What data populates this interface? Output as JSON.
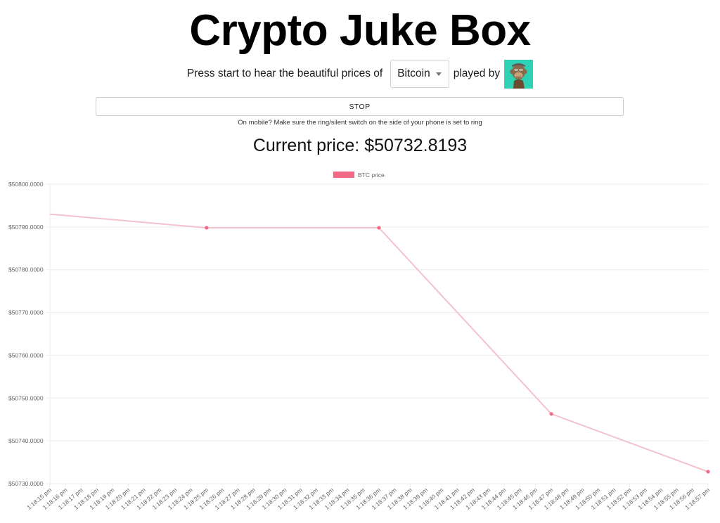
{
  "header": {
    "title": "Crypto Juke Box"
  },
  "controls": {
    "prompt_text": "Press start to hear the beautiful prices of",
    "coin_select": {
      "selected": "Bitcoin"
    },
    "played_by_text": "played by",
    "avatar_icon": "bored-ape-avatar",
    "stop_label": "STOP",
    "mobile_hint": "On mobile? Make sure the ring/silent switch on the side of your phone is set to ring"
  },
  "current_price": "Current price: $50732.8193",
  "colors": {
    "series": "#f06a85",
    "series_line": "#f4c2cc",
    "grid": "#ececec",
    "avatar_bg": "#2fd1b4"
  },
  "chart_data": {
    "type": "line",
    "legend": {
      "label": "BTC price",
      "placement": "top-center"
    },
    "ylim": [
      50730,
      50800
    ],
    "y_ticks": [
      "$50800.0000",
      "$50790.0000",
      "$50780.0000",
      "$50770.0000",
      "$50760.0000",
      "$50750.0000",
      "$50740.0000",
      "$50730.0000"
    ],
    "x": [
      "1:18:15 pm",
      "1:18:16 pm",
      "1:18:17 pm",
      "1:18:18 pm",
      "1:18:19 pm",
      "1:18:20 pm",
      "1:18:21 pm",
      "1:18:22 pm",
      "1:18:23 pm",
      "1:18:24 pm",
      "1:18:25 pm",
      "1:18:26 pm",
      "1:18:27 pm",
      "1:18:28 pm",
      "1:18:29 pm",
      "1:18:30 pm",
      "1:18:31 pm",
      "1:18:32 pm",
      "1:18:33 pm",
      "1:18:34 pm",
      "1:18:35 pm",
      "1:18:36 pm",
      "1:18:37 pm",
      "1:18:38 pm",
      "1:18:39 pm",
      "1:18:40 pm",
      "1:18:41 pm",
      "1:18:42 pm",
      "1:18:43 pm",
      "1:18:44 pm",
      "1:18:45 pm",
      "1:18:46 pm",
      "1:18:47 pm",
      "1:18:48 pm",
      "1:18:49 pm",
      "1:18:50 pm",
      "1:18:51 pm",
      "1:18:52 pm",
      "1:18:53 pm",
      "1:18:54 pm",
      "1:18:55 pm",
      "1:18:56 pm",
      "1:18:57 pm"
    ],
    "points": [
      {
        "x": "1:18:15 pm",
        "y": 50793.0
      },
      {
        "x": "1:18:25 pm",
        "y": 50789.8
      },
      {
        "x": "1:18:36 pm",
        "y": 50789.8
      },
      {
        "x": "1:18:47 pm",
        "y": 50746.3
      },
      {
        "x": "1:18:57 pm",
        "y": 50732.8
      }
    ],
    "grid": true
  }
}
